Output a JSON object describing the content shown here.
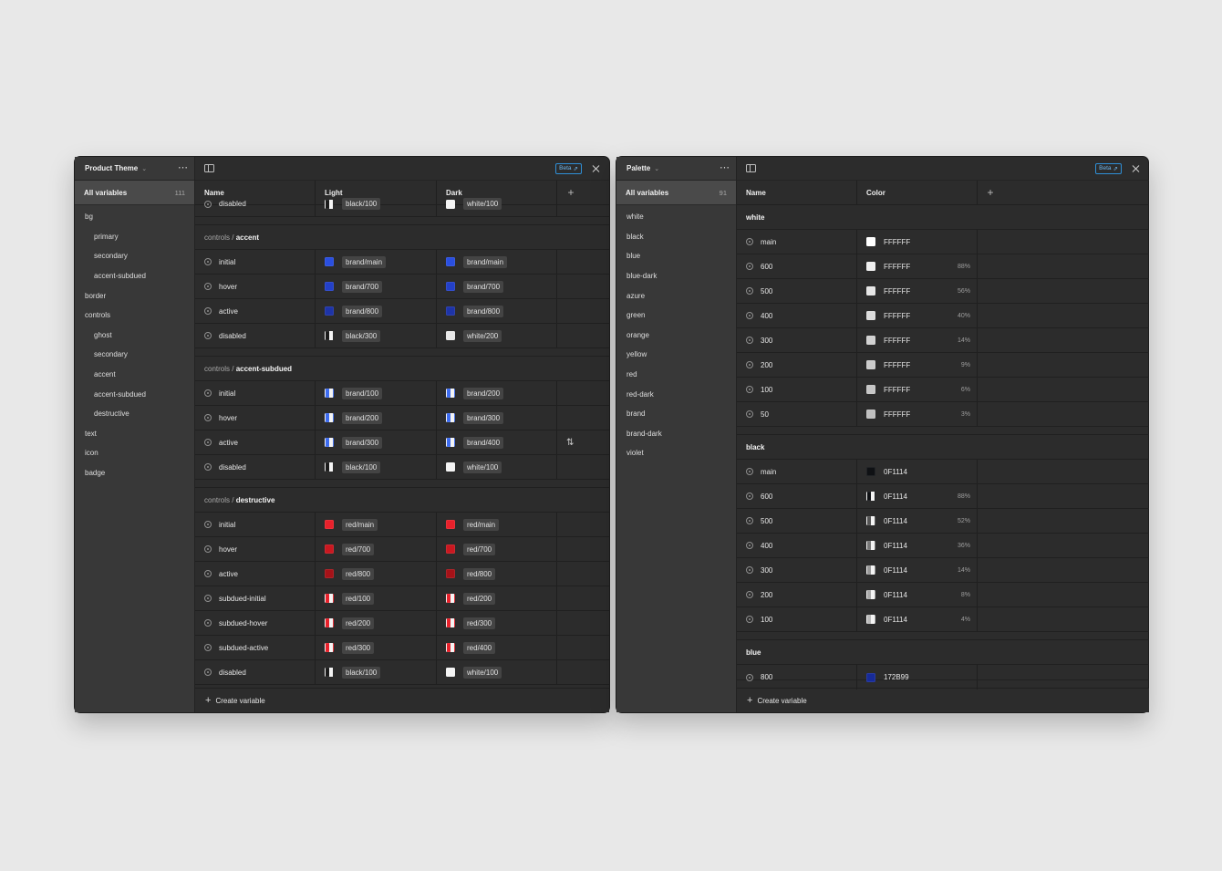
{
  "theme": {
    "title": "Product Theme",
    "count": "111",
    "all_label": "All variables",
    "beta": "Beta",
    "columns": [
      "Name",
      "Light",
      "Dark"
    ],
    "groups": [
      {
        "label": "bg",
        "sub": false
      },
      {
        "label": "primary",
        "sub": true
      },
      {
        "label": "secondary",
        "sub": true
      },
      {
        "label": "accent-subdued",
        "sub": true
      },
      {
        "label": "border",
        "sub": false
      },
      {
        "label": "controls",
        "sub": false
      },
      {
        "label": "ghost",
        "sub": true
      },
      {
        "label": "secondary",
        "sub": true
      },
      {
        "label": "accent",
        "sub": true
      },
      {
        "label": "accent-subdued",
        "sub": true
      },
      {
        "label": "destructive",
        "sub": true
      },
      {
        "label": "text",
        "sub": false
      },
      {
        "label": "icon",
        "sub": false
      },
      {
        "label": "badge",
        "sub": false
      }
    ],
    "top_partial": {
      "name": "disabled",
      "light": "black/100",
      "light_color": "split:#1b1b1b",
      "dark": "white/100",
      "dark_color": "#f4f4f4"
    },
    "sections": [
      {
        "path": "controls /",
        "leaf": "accent",
        "rows": [
          {
            "name": "initial",
            "light": "brand/main",
            "light_color": "#2a4fe0",
            "dark": "brand/main",
            "dark_color": "#2a4fe0"
          },
          {
            "name": "hover",
            "light": "brand/700",
            "light_color": "#2340c8",
            "dark": "brand/700",
            "dark_color": "#2340c8"
          },
          {
            "name": "active",
            "light": "brand/800",
            "light_color": "#1e34a8",
            "dark": "brand/800",
            "dark_color": "#1e34a8"
          },
          {
            "name": "disabled",
            "light": "black/300",
            "light_color": "split:#1b1b1b",
            "dark": "white/200",
            "dark_color": "#e8e8e8"
          }
        ]
      },
      {
        "path": "controls /",
        "leaf": "accent-subdued",
        "rows": [
          {
            "name": "initial",
            "light": "brand/100",
            "light_color": "split:#3d6cf0",
            "dark": "brand/200",
            "dark_color": "split:#3d6cf0"
          },
          {
            "name": "hover",
            "light": "brand/200",
            "light_color": "split:#3d6cf0",
            "dark": "brand/300",
            "dark_color": "split:#3d6cf0"
          },
          {
            "name": "active",
            "light": "brand/300",
            "light_color": "split:#3d6cf0",
            "dark": "brand/400",
            "dark_color": "split:#3d6cf0",
            "edit": true
          },
          {
            "name": "disabled",
            "light": "black/100",
            "light_color": "split:#1b1b1b",
            "dark": "white/100",
            "dark_color": "#f4f4f4"
          }
        ]
      },
      {
        "path": "controls /",
        "leaf": "destructive",
        "rows": [
          {
            "name": "initial",
            "light": "red/main",
            "light_color": "#e8212b",
            "dark": "red/main",
            "dark_color": "#e8212b"
          },
          {
            "name": "hover",
            "light": "red/700",
            "light_color": "#c91820",
            "dark": "red/700",
            "dark_color": "#c91820"
          },
          {
            "name": "active",
            "light": "red/800",
            "light_color": "#a51218",
            "dark": "red/800",
            "dark_color": "#a51218"
          },
          {
            "name": "subdued-initial",
            "light": "red/100",
            "light_color": "split:#e8212b",
            "dark": "red/200",
            "dark_color": "split:#e8212b"
          },
          {
            "name": "subdued-hover",
            "light": "red/200",
            "light_color": "split:#e8212b",
            "dark": "red/300",
            "dark_color": "split:#e8212b"
          },
          {
            "name": "subdued-active",
            "light": "red/300",
            "light_color": "split:#e8212b",
            "dark": "red/400",
            "dark_color": "split:#e8212b"
          },
          {
            "name": "disabled",
            "light": "black/100",
            "light_color": "split:#1b1b1b",
            "dark": "white/100",
            "dark_color": "#f4f4f4"
          }
        ]
      }
    ],
    "create_label": "Create variable"
  },
  "palette": {
    "title": "Palette",
    "count": "91",
    "all_label": "All variables",
    "beta": "Beta",
    "columns": [
      "Name",
      "Color"
    ],
    "groups": [
      {
        "label": "white",
        "sub": false
      },
      {
        "label": "black",
        "sub": false
      },
      {
        "label": "blue",
        "sub": false
      },
      {
        "label": "blue-dark",
        "sub": false
      },
      {
        "label": "azure",
        "sub": false
      },
      {
        "label": "green",
        "sub": false
      },
      {
        "label": "orange",
        "sub": false
      },
      {
        "label": "yellow",
        "sub": false
      },
      {
        "label": "red",
        "sub": false
      },
      {
        "label": "red-dark",
        "sub": false
      },
      {
        "label": "brand",
        "sub": false
      },
      {
        "label": "brand-dark",
        "sub": false
      },
      {
        "label": "violet",
        "sub": false
      }
    ],
    "sections": [
      {
        "leaf": "white",
        "rows": [
          {
            "name": "main",
            "hex": "FFFFFF",
            "pct": "",
            "color": "#ffffff"
          },
          {
            "name": "600",
            "hex": "FFFFFF",
            "pct": "88%",
            "color": "#f0f0f0"
          },
          {
            "name": "500",
            "hex": "FFFFFF",
            "pct": "56%",
            "color": "#e6e6e6"
          },
          {
            "name": "400",
            "hex": "FFFFFF",
            "pct": "40%",
            "color": "#dcdcdc"
          },
          {
            "name": "300",
            "hex": "FFFFFF",
            "pct": "14%",
            "color": "#d2d2d2"
          },
          {
            "name": "200",
            "hex": "FFFFFF",
            "pct": "9%",
            "color": "#cccccc"
          },
          {
            "name": "100",
            "hex": "FFFFFF",
            "pct": "6%",
            "color": "#c6c6c6"
          },
          {
            "name": "50",
            "hex": "FFFFFF",
            "pct": "3%",
            "color": "#c0c0c0"
          }
        ]
      },
      {
        "leaf": "black",
        "rows": [
          {
            "name": "main",
            "hex": "0F1114",
            "pct": "",
            "color": "#0f1114"
          },
          {
            "name": "600",
            "hex": "0F1114",
            "pct": "88%",
            "color": "split:#0f1114"
          },
          {
            "name": "500",
            "hex": "0F1114",
            "pct": "52%",
            "color": "split:#555555"
          },
          {
            "name": "400",
            "hex": "0F1114",
            "pct": "36%",
            "color": "split:#777777"
          },
          {
            "name": "300",
            "hex": "0F1114",
            "pct": "14%",
            "color": "split:#999999"
          },
          {
            "name": "200",
            "hex": "0F1114",
            "pct": "8%",
            "color": "split:#aaaaaa"
          },
          {
            "name": "100",
            "hex": "0F1114",
            "pct": "4%",
            "color": "split:#bbbbbb"
          }
        ]
      }
    ],
    "bottom_section": {
      "leaf": "blue"
    },
    "bottom_partial": {
      "name": "800",
      "hex": "172B99",
      "pct": "",
      "color": "#172b99"
    },
    "create_label": "Create variable"
  }
}
